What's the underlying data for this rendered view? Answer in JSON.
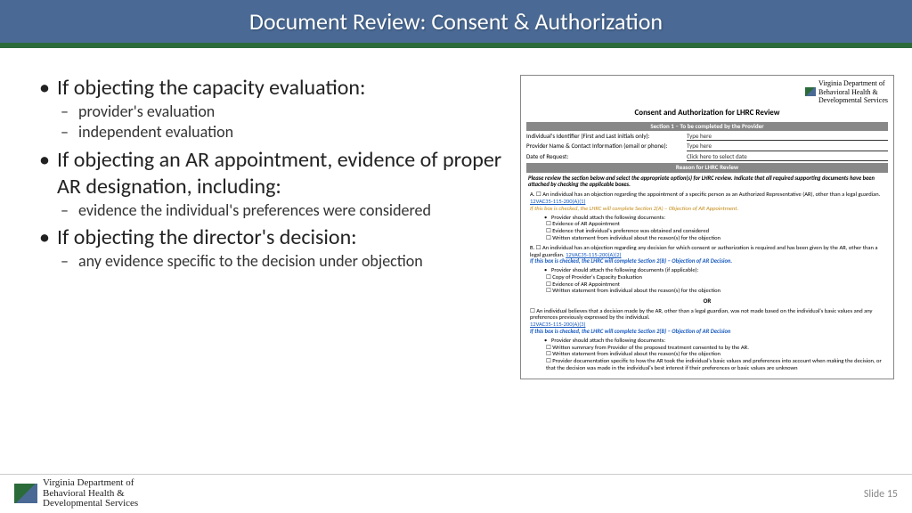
{
  "title": "Document Review: Consent & Authorization",
  "bullets": {
    "b1": "If objecting the capacity evaluation:",
    "b1a": "provider's evaluation",
    "b1b": "independent evaluation",
    "b2": "If objecting an AR appointment, evidence of proper AR designation, including:",
    "b2a": "evidence the individual's preferences were considered",
    "b3": "If objecting the director's decision:",
    "b3a": "any evidence specific to the decision under objection"
  },
  "form": {
    "dept": "Virginia Department of\nBehavioral Health &\nDevelopmental Services",
    "title": "Consent and Authorization for LHRC Review",
    "sec1": "Section 1 – To be completed by the Provider",
    "f1l": "Individual's Identifier (First and Last initials only):",
    "f1v": "Type here",
    "f2l": "Provider Name & Contact Information (email or phone):",
    "f2v": "Type here",
    "f3l": "Date of Request:",
    "f3v": "Click here to select date",
    "sec2": "Reason for LHRC Review",
    "instr": "Please review the section below and select the appropriate option(s) for LHRC review. Indicate that all required supporting documents have been attached by checking the applicable boxes.",
    "optA": "A. ☐ An individual has an objection regarding the appointment of a specific person as an Authorized Representative (AR), other than a legal guardian.",
    "linkA": "12VAC35-115-200(A)(1)",
    "noteA": "If this box is checked, the LHRC will complete Section 2(A) – Objection of AR Appointment.",
    "attach": "Provider should attach the following documents:",
    "a1": "Evidence of AR Appointment",
    "a2": "Evidence that individual's preference was obtained and considered",
    "a3": "Written statement from individual about the reason(s) for the objection",
    "optB": "B. ☐ An individual has an objection regarding any decision for which consent or authorization is required and has been given by the AR, other than a legal guardian.",
    "linkB": "12VAC35-115-200(A)(2)",
    "noteB": "If this box is checked, the LHRC will complete Section 2(B) – Objection of AR Decision.",
    "attachB": "Provider should attach the following documents (if applicable):",
    "b1": "Copy of Provider's Capacity Evaluation",
    "b2": "Evidence of AR Appointment",
    "b3": "Written statement from individual about the reason(s) for the objection",
    "or": "OR",
    "optC": "☐ An individual believes that a decision made by the AR, other than a legal guardian, was not made based on the individual's basic values and any preferences previously expressed by the individual.",
    "linkC": "12VAC35-115-200(A)(3)",
    "noteC": "If this box is checked, the LHRC will complete Section 2(B) – Objection of AR Decision",
    "c1": "Written summary from Provider of the proposed treatment consented to by the AR.",
    "c2": "Written statement from individual about the reason(s) for the objection",
    "c3": "Provider documentation specific to how the AR took the individual's basic values and preferences into account when making the decision, or that the decision was made in the individual's best interest if their preferences or basic values are unknown"
  },
  "footer": {
    "dept": "Virginia Department of\nBehavioral Health &\nDevelopmental Services",
    "slide": "Slide 15"
  }
}
